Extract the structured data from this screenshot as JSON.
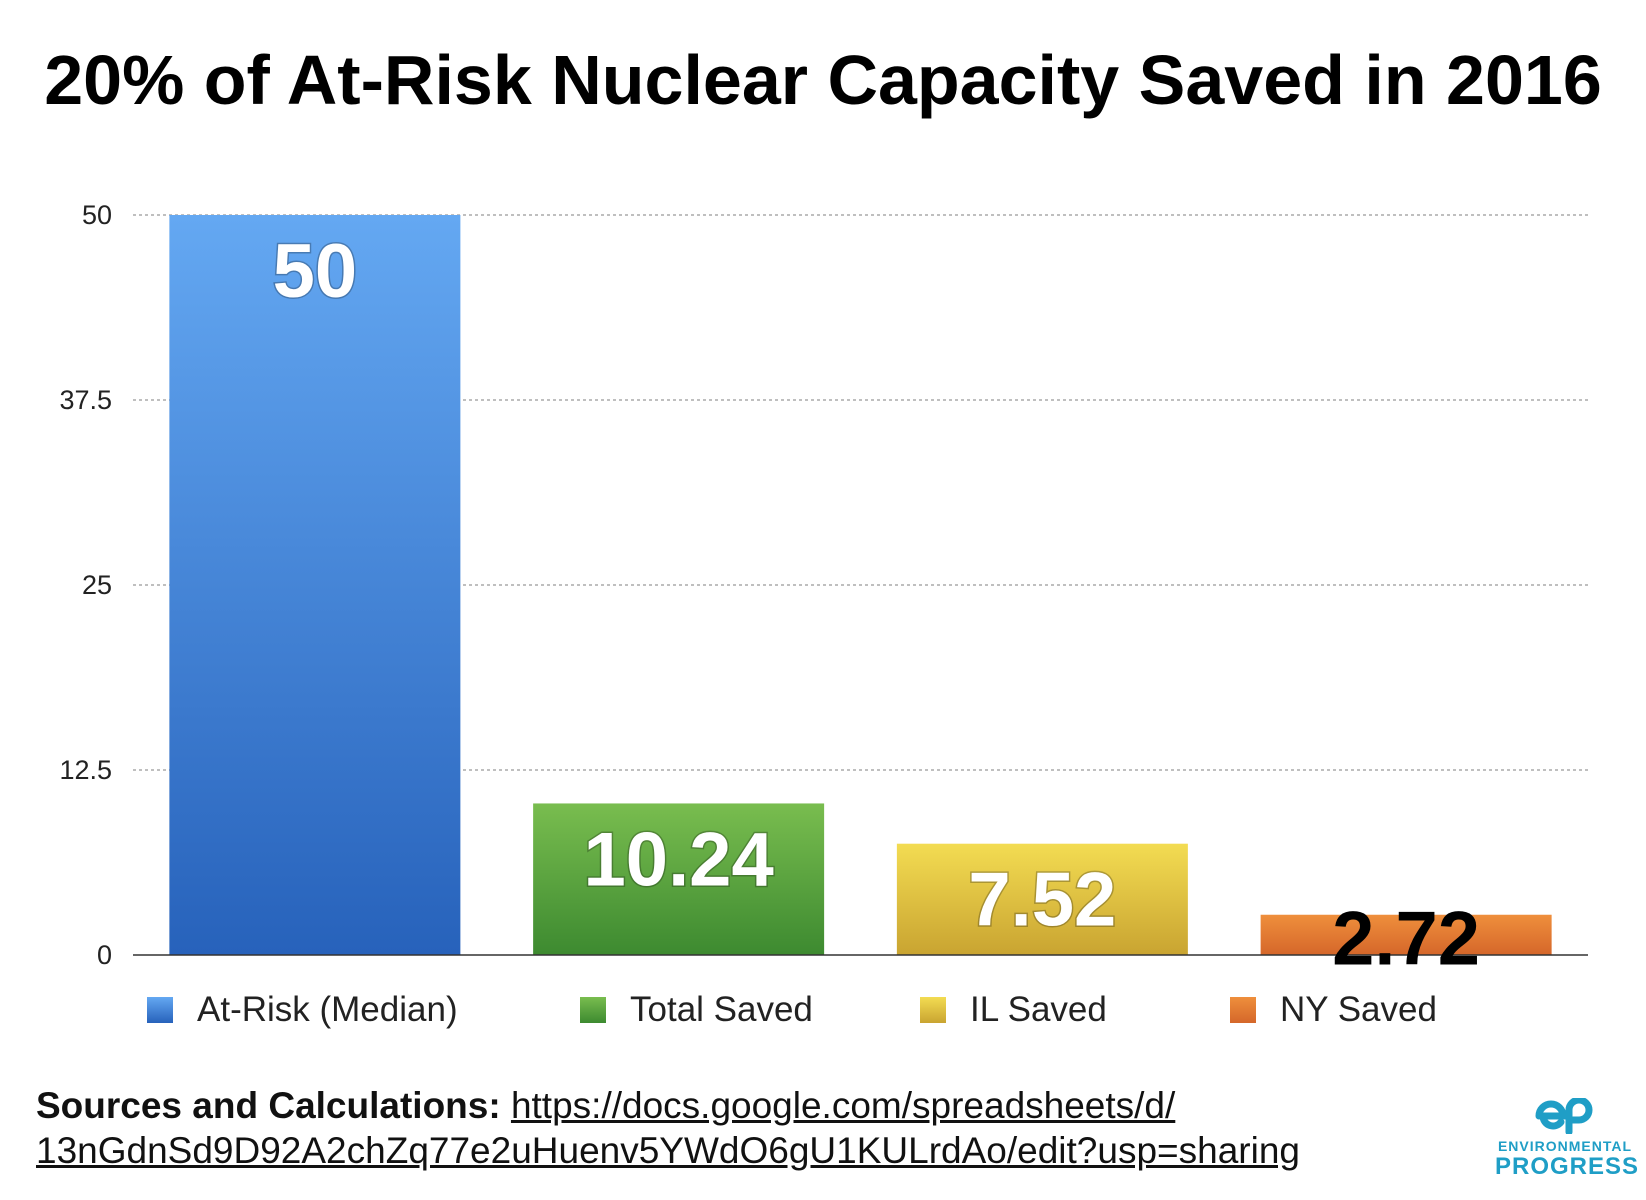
{
  "chart_data": {
    "type": "bar",
    "title": "20% of At-Risk Nuclear Capacity Saved in 2016",
    "categories": [
      "At-Risk (Median)",
      "Total Saved",
      "IL Saved",
      "NY Saved"
    ],
    "values": [
      50,
      10.24,
      7.52,
      2.72
    ],
    "value_labels": [
      "50",
      "10.24",
      "7.52",
      "2.72"
    ],
    "ylim": [
      0,
      50
    ],
    "yticks": [
      "0",
      "12.5",
      "25",
      "37.5",
      "50"
    ],
    "grid": true,
    "legend_position": "bottom",
    "colors": [
      {
        "top": "#64a8f2",
        "bottom": "#2762bb"
      },
      {
        "top": "#79bd4f",
        "bottom": "#3d8a30"
      },
      {
        "top": "#f3dc52",
        "bottom": "#c9a431"
      },
      {
        "top": "#ef8f3c",
        "bottom": "#d5672a"
      }
    ],
    "label_colors": [
      "#ffffff",
      "#ffffff",
      "#ffffff",
      "#000000"
    ]
  },
  "sources": {
    "label": "Sources and Calculations:",
    "link_line1": "https://docs.google.com/spreadsheets/d/",
    "link_line2": "13nGdnSd9D92A2chZq77e2uHuenv5YWdO6gU1KULrdAo/edit?usp=sharing"
  },
  "logo": {
    "mark": "ep",
    "line1": "ENVIRONMENTAL",
    "line2": "PROGRESS",
    "color": "#1f9ec6"
  }
}
